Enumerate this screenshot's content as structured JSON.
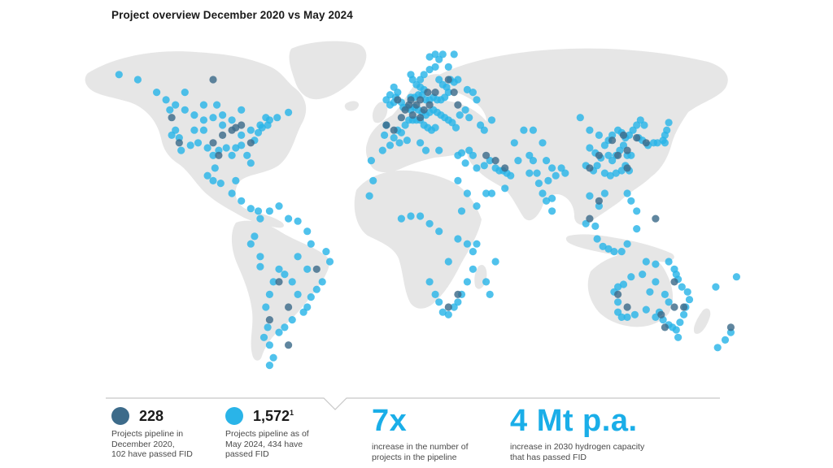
{
  "title": "Project overview December 2020 vs May 2024",
  "colors": {
    "land": "#e6e6e6",
    "dark_dot": "#3d6b8a",
    "light_dot": "#2ab4e8",
    "big_number": "#1aaee8",
    "divider": "#c8c8c8"
  },
  "legend": {
    "dec2020": {
      "value": "228",
      "description": "Projects pipeline in\nDecember 2020,\n102 have passed FID"
    },
    "may2024": {
      "value": "1,572",
      "footnote": "1",
      "description": "Projects pipeline as of\nMay 2024, 434 have\npassed FID"
    }
  },
  "stats": [
    {
      "value": "7x",
      "description": "increase in the number of\nprojects in the pipeline"
    },
    {
      "value": "4 Mt p.a.",
      "description": "increase in 2030 hydrogen capacity\nthat has passed FID"
    }
  ],
  "projects": {
    "dec2020": [
      [
        -95,
        38
      ],
      [
        -90,
        40
      ],
      [
        -85,
        42
      ],
      [
        -100,
        35
      ],
      [
        -118,
        35
      ],
      [
        -122,
        45
      ],
      [
        -80,
        35
      ],
      [
        -88,
        41
      ],
      [
        -97,
        30
      ],
      [
        -45,
        -15
      ],
      [
        -60,
        -30
      ],
      [
        -70,
        -35
      ],
      [
        -65,
        -20
      ],
      [
        -100,
        60
      ],
      [
        2,
        48
      ],
      [
        8,
        50
      ],
      [
        10,
        52
      ],
      [
        5,
        52
      ],
      [
        12,
        48
      ],
      [
        -2,
        52
      ],
      [
        15,
        50
      ],
      [
        6,
        46
      ],
      [
        -4,
        40
      ],
      [
        10,
        45
      ],
      [
        18,
        55
      ],
      [
        14,
        55
      ],
      [
        0,
        45
      ],
      [
        -8,
        42
      ],
      [
        4,
        50
      ],
      [
        25,
        60
      ],
      [
        28,
        55
      ],
      [
        30,
        50
      ],
      [
        50,
        28
      ],
      [
        55,
        25
      ],
      [
        45,
        30
      ],
      [
        115,
        30
      ],
      [
        120,
        32
      ],
      [
        112,
        36
      ],
      [
        120,
        25
      ],
      [
        125,
        37
      ],
      [
        130,
        35
      ],
      [
        105,
        30
      ],
      [
        118,
        38
      ],
      [
        100,
        25
      ],
      [
        115,
        -25
      ],
      [
        145,
        -30
      ],
      [
        150,
        -30
      ],
      [
        140,
        -38
      ],
      [
        145,
        -20
      ],
      [
        138,
        -33
      ],
      [
        120,
        -30
      ],
      [
        105,
        12
      ],
      [
        100,
        5
      ],
      [
        135,
        5
      ],
      [
        25,
        -30
      ],
      [
        30,
        -25
      ],
      [
        -60,
        -45
      ],
      [
        175,
        -38
      ]
    ],
    "may2024": [
      [
        -120,
        50
      ],
      [
        -115,
        48
      ],
      [
        -110,
        46
      ],
      [
        -105,
        44
      ],
      [
        -100,
        45
      ],
      [
        -95,
        42
      ],
      [
        -90,
        44
      ],
      [
        -85,
        38
      ],
      [
        -80,
        40
      ],
      [
        -75,
        42
      ],
      [
        -72,
        45
      ],
      [
        -70,
        44
      ],
      [
        -78,
        36
      ],
      [
        -82,
        30
      ],
      [
        -88,
        33
      ],
      [
        -93,
        33
      ],
      [
        -97,
        32
      ],
      [
        -100,
        30
      ],
      [
        -103,
        33
      ],
      [
        -108,
        35
      ],
      [
        -112,
        34
      ],
      [
        -118,
        37
      ],
      [
        -120,
        40
      ],
      [
        -123,
        48
      ],
      [
        -122,
        38
      ],
      [
        -117,
        32
      ],
      [
        -110,
        40
      ],
      [
        -105,
        40
      ],
      [
        -95,
        46
      ],
      [
        -90,
        30
      ],
      [
        -85,
        34
      ],
      [
        -80,
        27
      ],
      [
        -76,
        39
      ],
      [
        -74,
        41
      ],
      [
        -71,
        42
      ],
      [
        -66,
        45
      ],
      [
        -60,
        47
      ],
      [
        -130,
        55
      ],
      [
        -125,
        52
      ],
      [
        -115,
        55
      ],
      [
        -105,
        50
      ],
      [
        -98,
        50
      ],
      [
        -85,
        48
      ],
      [
        -150,
        62
      ],
      [
        -140,
        60
      ],
      [
        -100,
        20
      ],
      [
        -103,
        22
      ],
      [
        -99,
        25
      ],
      [
        -96,
        19
      ],
      [
        -88,
        20
      ],
      [
        -90,
        15
      ],
      [
        -85,
        12
      ],
      [
        -80,
        9
      ],
      [
        -76,
        8
      ],
      [
        -75,
        5
      ],
      [
        -70,
        8
      ],
      [
        -65,
        10
      ],
      [
        -60,
        5
      ],
      [
        -55,
        4
      ],
      [
        -50,
        0
      ],
      [
        -48,
        -5
      ],
      [
        -40,
        -8
      ],
      [
        -38,
        -12
      ],
      [
        -42,
        -20
      ],
      [
        -45,
        -23
      ],
      [
        -48,
        -26
      ],
      [
        -50,
        -30
      ],
      [
        -52,
        -32
      ],
      [
        -55,
        -25
      ],
      [
        -58,
        -20
      ],
      [
        -62,
        -17
      ],
      [
        -65,
        -15
      ],
      [
        -68,
        -20
      ],
      [
        -70,
        -25
      ],
      [
        -72,
        -30
      ],
      [
        -71,
        -38
      ],
      [
        -73,
        -42
      ],
      [
        -70,
        -45
      ],
      [
        -68,
        -50
      ],
      [
        -70,
        -53
      ],
      [
        -65,
        -40
      ],
      [
        -62,
        -38
      ],
      [
        -58,
        -35
      ],
      [
        -75,
        -10
      ],
      [
        -78,
        -2
      ],
      [
        -80,
        -5
      ],
      [
        -75,
        -14
      ],
      [
        -55,
        -10
      ],
      [
        -50,
        -15
      ],
      [
        -9,
        38
      ],
      [
        -8,
        42
      ],
      [
        -4,
        37
      ],
      [
        -2,
        40
      ],
      [
        0,
        39
      ],
      [
        2,
        42
      ],
      [
        4,
        44
      ],
      [
        6,
        44
      ],
      [
        8,
        44
      ],
      [
        10,
        44
      ],
      [
        12,
        42
      ],
      [
        14,
        41
      ],
      [
        16,
        40
      ],
      [
        18,
        41
      ],
      [
        -6,
        50
      ],
      [
        -4,
        51
      ],
      [
        -3,
        53
      ],
      [
        -2,
        55
      ],
      [
        -4,
        57
      ],
      [
        -6,
        54
      ],
      [
        -8,
        52
      ],
      [
        0,
        51
      ],
      [
        1,
        49
      ],
      [
        3,
        49
      ],
      [
        5,
        48
      ],
      [
        7,
        49
      ],
      [
        9,
        48
      ],
      [
        11,
        47
      ],
      [
        13,
        46
      ],
      [
        15,
        47
      ],
      [
        17,
        48
      ],
      [
        19,
        47
      ],
      [
        21,
        46
      ],
      [
        23,
        45
      ],
      [
        25,
        44
      ],
      [
        27,
        43
      ],
      [
        29,
        41
      ],
      [
        5,
        53
      ],
      [
        7,
        53
      ],
      [
        9,
        54
      ],
      [
        11,
        54
      ],
      [
        13,
        52
      ],
      [
        15,
        52
      ],
      [
        17,
        53
      ],
      [
        19,
        52
      ],
      [
        21,
        52
      ],
      [
        23,
        53
      ],
      [
        25,
        55
      ],
      [
        10,
        57
      ],
      [
        12,
        56
      ],
      [
        8,
        58
      ],
      [
        6,
        60
      ],
      [
        10,
        60
      ],
      [
        5,
        62
      ],
      [
        12,
        62
      ],
      [
        15,
        64
      ],
      [
        18,
        65
      ],
      [
        20,
        60
      ],
      [
        22,
        58
      ],
      [
        24,
        57
      ],
      [
        26,
        60
      ],
      [
        28,
        59
      ],
      [
        30,
        60
      ],
      [
        25,
        65
      ],
      [
        20,
        68
      ],
      [
        18,
        70
      ],
      [
        15,
        69
      ],
      [
        22,
        70
      ],
      [
        28,
        70
      ],
      [
        35,
        56
      ],
      [
        38,
        55
      ],
      [
        40,
        52
      ],
      [
        34,
        48
      ],
      [
        31,
        46
      ],
      [
        36,
        45
      ],
      [
        42,
        42
      ],
      [
        44,
        40
      ],
      [
        48,
        44
      ],
      [
        -16,
        28
      ],
      [
        -10,
        32
      ],
      [
        -6,
        34
      ],
      [
        -1,
        35
      ],
      [
        3,
        36
      ],
      [
        10,
        35
      ],
      [
        13,
        32
      ],
      [
        20,
        32
      ],
      [
        30,
        30
      ],
      [
        32,
        31
      ],
      [
        34,
        27
      ],
      [
        36,
        32
      ],
      [
        38,
        30
      ],
      [
        40,
        25
      ],
      [
        44,
        26
      ],
      [
        47,
        28
      ],
      [
        50,
        25
      ],
      [
        52,
        24
      ],
      [
        54,
        24
      ],
      [
        56,
        23
      ],
      [
        58,
        22
      ],
      [
        45,
        15
      ],
      [
        48,
        15
      ],
      [
        55,
        17
      ],
      [
        35,
        15
      ],
      [
        40,
        10
      ],
      [
        30,
        20
      ],
      [
        32,
        8
      ],
      [
        -15,
        20
      ],
      [
        -17,
        14
      ],
      [
        0,
        5
      ],
      [
        5,
        6
      ],
      [
        10,
        6
      ],
      [
        15,
        3
      ],
      [
        20,
        0
      ],
      [
        30,
        -3
      ],
      [
        35,
        -5
      ],
      [
        38,
        -8
      ],
      [
        40,
        -5
      ],
      [
        25,
        -12
      ],
      [
        15,
        -20
      ],
      [
        18,
        -25
      ],
      [
        20,
        -28
      ],
      [
        22,
        -32
      ],
      [
        25,
        -33
      ],
      [
        28,
        -30
      ],
      [
        30,
        -28
      ],
      [
        32,
        -25
      ],
      [
        35,
        -20
      ],
      [
        38,
        -15
      ],
      [
        45,
        -20
      ],
      [
        47,
        -25
      ],
      [
        50,
        -12
      ],
      [
        60,
        35
      ],
      [
        65,
        40
      ],
      [
        70,
        40
      ],
      [
        75,
        35
      ],
      [
        70,
        28
      ],
      [
        72,
        23
      ],
      [
        73,
        19
      ],
      [
        75,
        15
      ],
      [
        77,
        12
      ],
      [
        78,
        20
      ],
      [
        80,
        25
      ],
      [
        82,
        22
      ],
      [
        85,
        25
      ],
      [
        87,
        23
      ],
      [
        77,
        28
      ],
      [
        68,
        30
      ],
      [
        62,
        28
      ],
      [
        80,
        13
      ],
      [
        68,
        23
      ],
      [
        80,
        8
      ],
      [
        95,
        45
      ],
      [
        100,
        40
      ],
      [
        105,
        38
      ],
      [
        108,
        34
      ],
      [
        110,
        36
      ],
      [
        112,
        38
      ],
      [
        115,
        40
      ],
      [
        117,
        39
      ],
      [
        119,
        37
      ],
      [
        121,
        38
      ],
      [
        123,
        40
      ],
      [
        125,
        42
      ],
      [
        127,
        44
      ],
      [
        129,
        42
      ],
      [
        126,
        37
      ],
      [
        128,
        36
      ],
      [
        131,
        34
      ],
      [
        134,
        35
      ],
      [
        136,
        35
      ],
      [
        139,
        36
      ],
      [
        140,
        38
      ],
      [
        141,
        40
      ],
      [
        142,
        43
      ],
      [
        140,
        35
      ],
      [
        110,
        30
      ],
      [
        112,
        28
      ],
      [
        114,
        30
      ],
      [
        116,
        32
      ],
      [
        118,
        34
      ],
      [
        120,
        30
      ],
      [
        122,
        30
      ],
      [
        119,
        26
      ],
      [
        117,
        24
      ],
      [
        114,
        23
      ],
      [
        111,
        22
      ],
      [
        108,
        23
      ],
      [
        104,
        26
      ],
      [
        102,
        24
      ],
      [
        98,
        26
      ],
      [
        106,
        29
      ],
      [
        103,
        31
      ],
      [
        100,
        33
      ],
      [
        121,
        24
      ],
      [
        120,
        15
      ],
      [
        122,
        12
      ],
      [
        125,
        8
      ],
      [
        100,
        14
      ],
      [
        103,
        2
      ],
      [
        105,
        10
      ],
      [
        108,
        15
      ],
      [
        110,
        -7
      ],
      [
        113,
        -8
      ],
      [
        117,
        -8
      ],
      [
        107,
        -6
      ],
      [
        104,
        -3
      ],
      [
        98,
        3
      ],
      [
        120,
        -5
      ],
      [
        125,
        1
      ],
      [
        115,
        -32
      ],
      [
        117,
        -34
      ],
      [
        120,
        -34
      ],
      [
        124,
        -33
      ],
      [
        130,
        -31
      ],
      [
        135,
        -34
      ],
      [
        137,
        -32
      ],
      [
        139,
        -35
      ],
      [
        142,
        -37
      ],
      [
        144,
        -38
      ],
      [
        146,
        -39
      ],
      [
        148,
        -36
      ],
      [
        150,
        -33
      ],
      [
        151,
        -30
      ],
      [
        153,
        -27
      ],
      [
        152,
        -24
      ],
      [
        149,
        -22
      ],
      [
        147,
        -19
      ],
      [
        146,
        -17
      ],
      [
        145,
        -15
      ],
      [
        142,
        -12
      ],
      [
        135,
        -13
      ],
      [
        130,
        -12
      ],
      [
        128,
        -17
      ],
      [
        122,
        -18
      ],
      [
        118,
        -21
      ],
      [
        115,
        -22
      ],
      [
        113,
        -24
      ],
      [
        115,
        -28
      ],
      [
        132,
        -24
      ],
      [
        140,
        -25
      ],
      [
        135,
        -20
      ],
      [
        142,
        -28
      ],
      [
        147,
        -42
      ],
      [
        175,
        -40
      ],
      [
        172,
        -43
      ],
      [
        168,
        -46
      ],
      [
        178,
        -18
      ],
      [
        167,
        -22
      ]
    ]
  }
}
